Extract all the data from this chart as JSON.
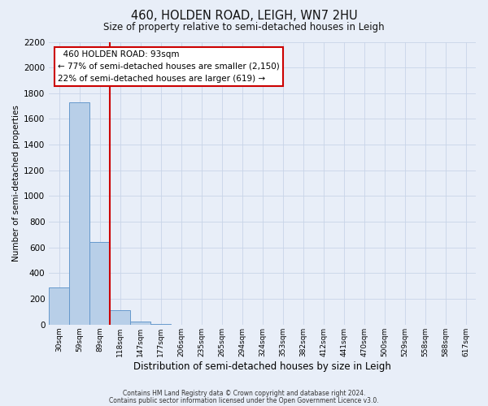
{
  "title": "460, HOLDEN ROAD, LEIGH, WN7 2HU",
  "subtitle": "Size of property relative to semi-detached houses in Leigh",
  "bar_values": [
    290,
    1730,
    640,
    110,
    25,
    5,
    0,
    0,
    0,
    0,
    0,
    0,
    0,
    0,
    0,
    0,
    0,
    0,
    0,
    0,
    0
  ],
  "bin_labels": [
    "30sqm",
    "59sqm",
    "89sqm",
    "118sqm",
    "147sqm",
    "177sqm",
    "206sqm",
    "235sqm",
    "265sqm",
    "294sqm",
    "324sqm",
    "353sqm",
    "382sqm",
    "412sqm",
    "441sqm",
    "470sqm",
    "500sqm",
    "529sqm",
    "558sqm",
    "588sqm",
    "617sqm"
  ],
  "bar_color": "#b8cfe8",
  "bar_edge_color": "#6699cc",
  "xlabel": "Distribution of semi-detached houses by size in Leigh",
  "ylabel": "Number of semi-detached properties",
  "ylim": [
    0,
    2200
  ],
  "yticks": [
    0,
    200,
    400,
    600,
    800,
    1000,
    1200,
    1400,
    1600,
    1800,
    2000,
    2200
  ],
  "red_line_bin_index": 2,
  "annotation_title": "460 HOLDEN ROAD: 93sqm",
  "annotation_line1": "← 77% of semi-detached houses are smaller (2,150)",
  "annotation_line2": "22% of semi-detached houses are larger (619) →",
  "annotation_box_color": "#ffffff",
  "annotation_box_edge_color": "#cc0000",
  "red_line_color": "#cc0000",
  "grid_color": "#c8d4e8",
  "background_color": "#e8eef8",
  "footer_line1": "Contains HM Land Registry data © Crown copyright and database right 2024.",
  "footer_line2": "Contains public sector information licensed under the Open Government Licence v3.0."
}
